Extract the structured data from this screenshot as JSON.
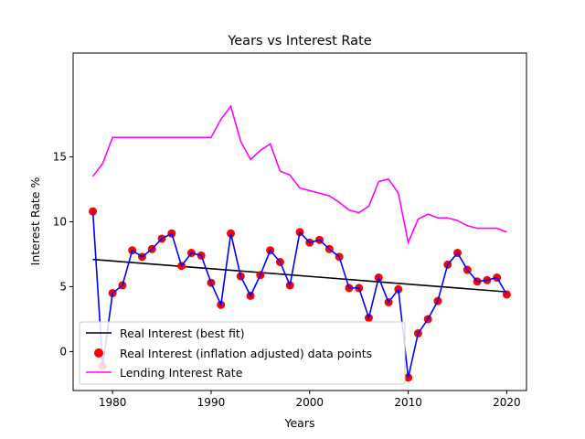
{
  "chart_data": {
    "type": "line",
    "title": "Years vs Interest Rate",
    "xlabel": "Years",
    "ylabel": "Interest Rate %",
    "xlim": [
      1976,
      2022
    ],
    "ylim": [
      -3,
      23
    ],
    "xticks": [
      1980,
      1990,
      2000,
      2010,
      2020
    ],
    "yticks": [
      0,
      5,
      10,
      15
    ],
    "grid": false,
    "legend_position": "lower-left",
    "x": [
      1978,
      1979,
      1980,
      1981,
      1982,
      1983,
      1984,
      1985,
      1986,
      1987,
      1988,
      1989,
      1990,
      1991,
      1992,
      1993,
      1994,
      1995,
      1996,
      1997,
      1998,
      1999,
      2000,
      2001,
      2002,
      2003,
      2004,
      2005,
      2006,
      2007,
      2008,
      2009,
      2010,
      2011,
      2012,
      2013,
      2014,
      2015,
      2016,
      2017,
      2018,
      2019,
      2020
    ],
    "series": [
      {
        "name": "Real Interest (inflation adjusted) data points",
        "kind": "scatter+line",
        "marker_color": "#ff0000",
        "line_color": "#0000ff",
        "values": [
          10.8,
          -1.1,
          4.5,
          5.1,
          7.8,
          7.3,
          7.9,
          8.7,
          9.1,
          6.6,
          7.6,
          7.4,
          5.3,
          3.6,
          9.1,
          5.8,
          4.3,
          5.9,
          7.8,
          6.9,
          5.1,
          9.2,
          8.4,
          8.6,
          7.9,
          7.3,
          4.9,
          4.9,
          2.6,
          5.7,
          3.8,
          4.8,
          -2.0,
          1.4,
          2.5,
          3.9,
          6.7,
          7.6,
          6.3,
          5.4,
          5.5,
          5.7,
          4.4
        ]
      },
      {
        "name": "Real Interest (best fit)",
        "kind": "line",
        "line_color": "#000000",
        "x": [
          1978,
          2020
        ],
        "values": [
          7.1,
          4.6
        ]
      },
      {
        "name": "Lending Interest Rate",
        "kind": "line",
        "line_color": "#ff00ff",
        "values": [
          13.5,
          14.5,
          16.5,
          16.5,
          16.5,
          16.5,
          16.5,
          16.5,
          16.5,
          16.5,
          16.5,
          16.5,
          16.5,
          17.9,
          18.9,
          16.2,
          14.8,
          15.5,
          16.0,
          13.9,
          13.6,
          12.6,
          12.4,
          12.2,
          12.0,
          11.5,
          10.9,
          10.7,
          11.2,
          13.1,
          13.3,
          12.2,
          8.4,
          10.2,
          10.6,
          10.3,
          10.3,
          10.1,
          9.7,
          9.5,
          9.5,
          9.5,
          9.2
        ]
      }
    ]
  }
}
